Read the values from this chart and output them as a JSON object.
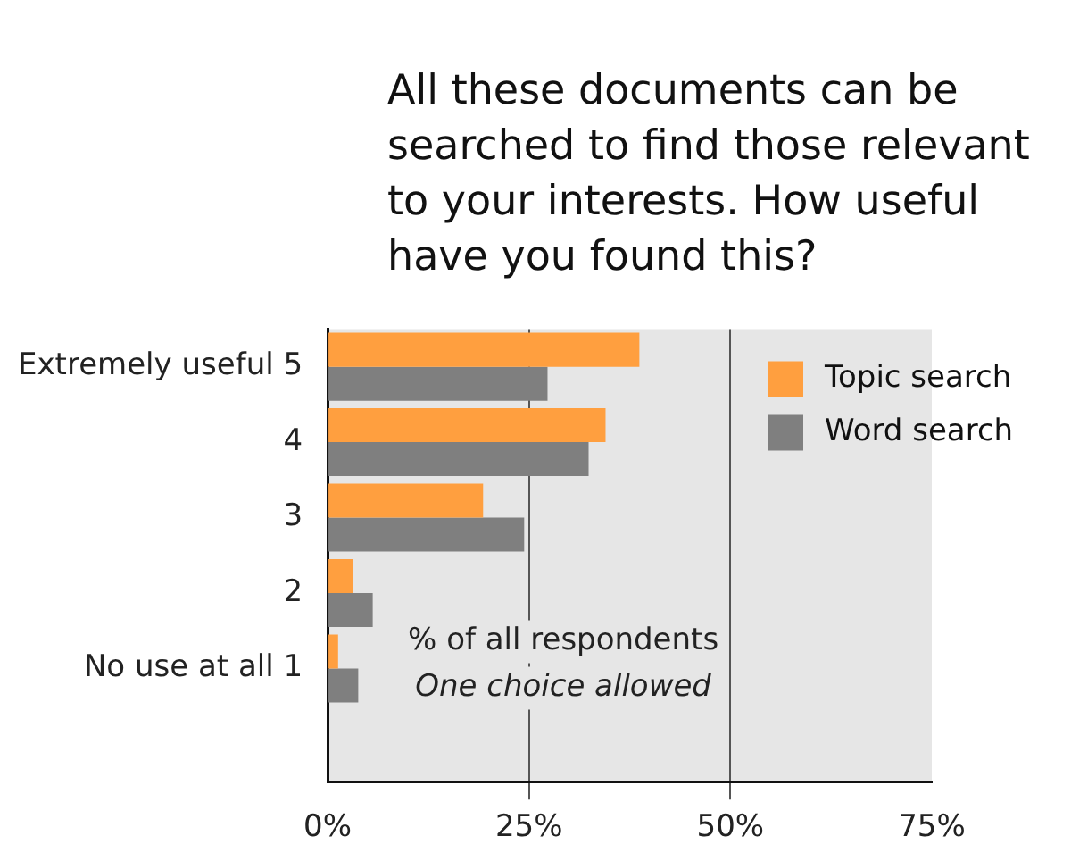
{
  "chart_data": {
    "type": "bar",
    "orientation": "horizontal",
    "title": "All these documents can be searched to find those relevant to your interests. How useful have you found this?",
    "categories": [
      "Extremely useful 5",
      "4",
      "3",
      "2",
      "No use at all 1",
      null
    ],
    "series": [
      {
        "name": "Topic search",
        "color": "#ff9f3f",
        "values": [
          38.7,
          34.5,
          19.3,
          3.1,
          1.3,
          null
        ]
      },
      {
        "name": "Word search",
        "color": "#7f7f7f",
        "values": [
          27.3,
          32.4,
          24.4,
          5.6,
          3.8,
          null
        ]
      }
    ],
    "xlim": [
      0,
      75
    ],
    "xticks": [
      {
        "value": 0,
        "label": "0%"
      },
      {
        "value": 25,
        "label": "25%"
      },
      {
        "value": 50,
        "label": "50%"
      },
      {
        "value": 75,
        "label": "75%"
      }
    ],
    "grid": "x",
    "legend": "top right",
    "annotations": [
      "% of all respondents",
      "One choice allowed"
    ]
  }
}
